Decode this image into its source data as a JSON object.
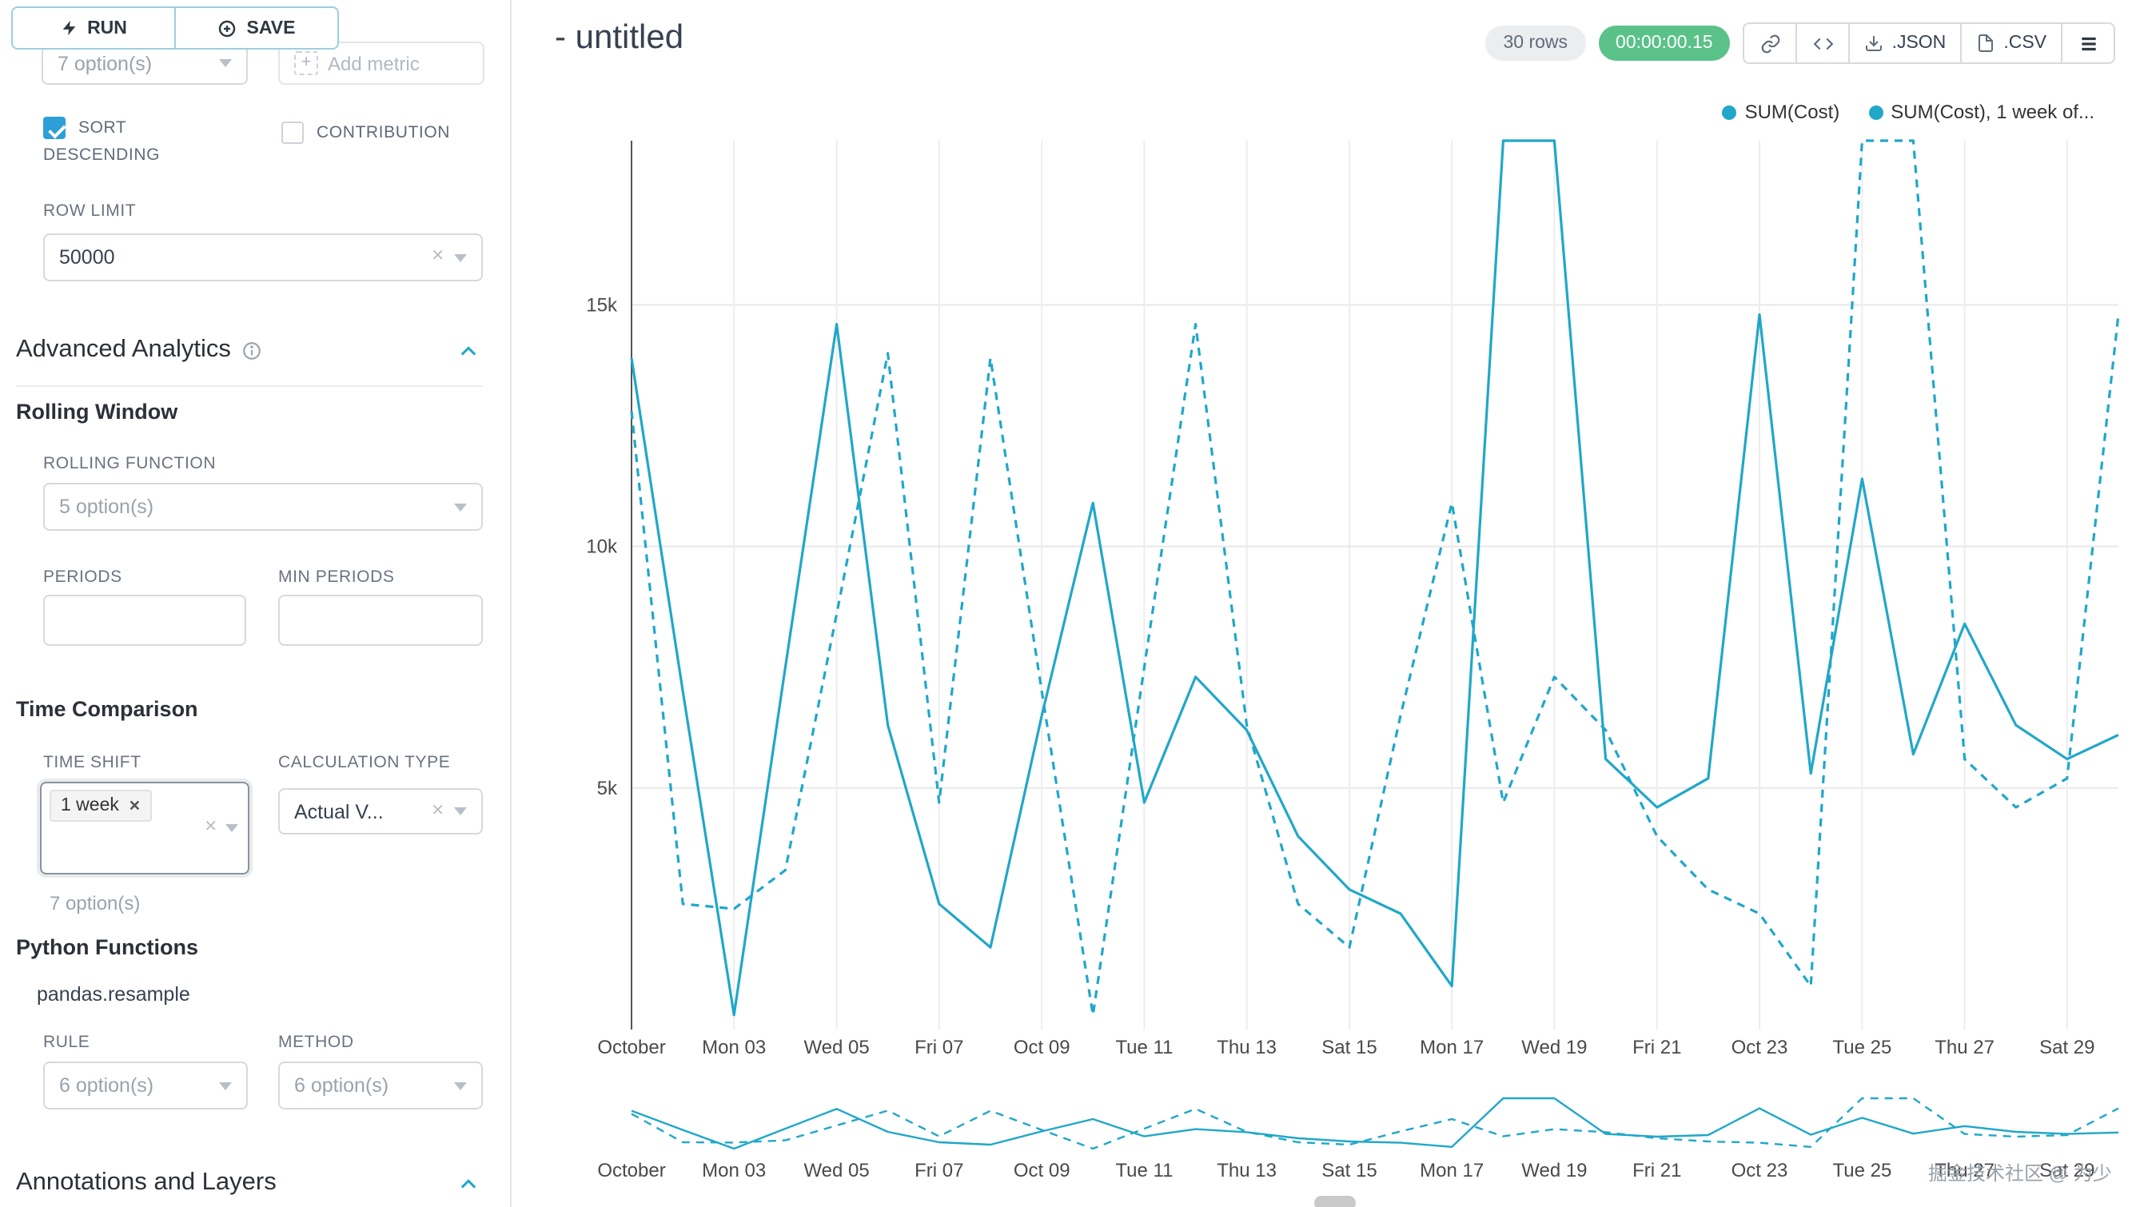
{
  "colors": {
    "primary": "#20a7c9",
    "checkbox": "#2d9fd8",
    "success": "#5ac189",
    "line": "#20a7c9"
  },
  "toolbar": {
    "run": "RUN",
    "save": "SAVE"
  },
  "panel": {
    "metrics_value": "7 option(s)",
    "add_metric": "Add metric",
    "sort_descending": "SORT DESCENDING",
    "contribution": "CONTRIBUTION",
    "row_limit_label": "ROW LIMIT",
    "row_limit_value": "50000",
    "advanced_title": "Advanced Analytics",
    "rolling_window_title": "Rolling Window",
    "rolling_function_label": "ROLLING FUNCTION",
    "rolling_function_value": "5 option(s)",
    "periods_label": "PERIODS",
    "min_periods_label": "MIN PERIODS",
    "time_comparison_title": "Time Comparison",
    "time_shift_label": "TIME SHIFT",
    "time_shift_tag": "1 week",
    "time_shift_hint": "7 option(s)",
    "calculation_type_label": "CALCULATION TYPE",
    "calculation_type_value": "Actual V...",
    "python_functions_title": "Python Functions",
    "resample_text": "pandas.resample",
    "rule_label": "RULE",
    "rule_value": "6 option(s)",
    "method_label": "METHOD",
    "method_value": "6 option(s)",
    "annotations_title": "Annotations and Layers"
  },
  "header": {
    "title": "- untitled",
    "rows_badge": "30 rows",
    "timer": "00:00:00.15",
    "json_label": ".JSON",
    "csv_label": ".CSV"
  },
  "legend": [
    {
      "label": "SUM(Cost)"
    },
    {
      "label": "SUM(Cost), 1 week of..."
    }
  ],
  "watermark": "掘金技术社区 @ 为少",
  "chart_data": {
    "type": "line",
    "title": "",
    "xlabel": "",
    "ylabel": "",
    "n_points": 30,
    "tick_every": 2,
    "x_tick_labels": [
      "October",
      "Mon 03",
      "Wed 05",
      "Fri 07",
      "Oct 09",
      "Tue 11",
      "Thu 13",
      "Sat 15",
      "Mon 17",
      "Wed 19",
      "Fri 21",
      "Oct 23",
      "Tue 25",
      "Thu 27",
      "Sat 29"
    ],
    "y_ticks": [
      {
        "label": "5k",
        "value": 5000
      },
      {
        "label": "10k",
        "value": 10000
      },
      {
        "label": "15k",
        "value": 15000
      }
    ],
    "ylim": [
      0,
      18400
    ],
    "grid": true,
    "legend_position": "top-right",
    "has_mini_preview": true,
    "series": [
      {
        "name": "SUM(Cost)",
        "line_style": "solid",
        "color": "#20a7c9",
        "values": [
          13900,
          7000,
          300,
          7500,
          14600,
          6300,
          2600,
          1700,
          6500,
          10900,
          4700,
          7300,
          6200,
          4000,
          2900,
          2400,
          900,
          18400,
          18400,
          5600,
          4600,
          5200,
          14800,
          5300,
          11400,
          5700,
          8400,
          6300,
          5600,
          6100
        ]
      },
      {
        "name": "SUM(Cost), 1 week of...",
        "line_style": "dashed",
        "color": "#20a7c9",
        "values": [
          12800,
          2600,
          2500,
          3300,
          8600,
          14000,
          4700,
          13900,
          7000,
          300,
          7500,
          14600,
          6300,
          2600,
          1700,
          6500,
          10900,
          4700,
          7300,
          6200,
          4000,
          2900,
          2400,
          900,
          18400,
          18400,
          5600,
          4600,
          5200,
          14800
        ]
      }
    ]
  }
}
